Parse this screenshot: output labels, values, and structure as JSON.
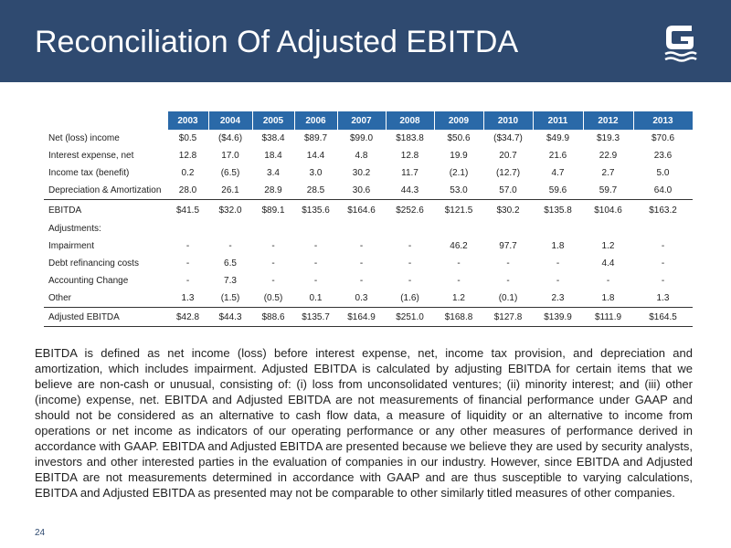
{
  "header": {
    "title": "Reconciliation Of Adjusted EBITDA",
    "background_color": "#2f4a70",
    "logo_icon": "g-logo-icon"
  },
  "table": {
    "header_color": "#2a69a8",
    "years": [
      "2003",
      "2004",
      "2005",
      "2006",
      "2007",
      "2008",
      "2009",
      "2010",
      "2011",
      "2012",
      "2013"
    ],
    "rows": [
      {
        "label": "Net (loss) income",
        "values": [
          "$0.5",
          "($4.6)",
          "$38.4",
          "$89.7",
          "$99.0",
          "$183.8",
          "$50.6",
          "($34.7)",
          "$49.9",
          "$19.3",
          "$70.6"
        ]
      },
      {
        "label": "Interest expense, net",
        "values": [
          "12.8",
          "17.0",
          "18.4",
          "14.4",
          "4.8",
          "12.8",
          "19.9",
          "20.7",
          "21.6",
          "22.9",
          "23.6"
        ]
      },
      {
        "label": "Income tax (benefit)",
        "values": [
          "0.2",
          "(6.5)",
          "3.4",
          "3.0",
          "30.2",
          "11.7",
          "(2.1)",
          "(12.7)",
          "4.7",
          "2.7",
          "5.0"
        ]
      },
      {
        "label": "Depreciation & Amortization",
        "values": [
          "28.0",
          "26.1",
          "28.9",
          "28.5",
          "30.6",
          "44.3",
          "53.0",
          "57.0",
          "59.6",
          "59.7",
          "64.0"
        ]
      },
      {
        "label": "EBITDA",
        "values": [
          "$41.5",
          "$32.0",
          "$89.1",
          "$135.6",
          "$164.6",
          "$252.6",
          "$121.5",
          "$30.2",
          "$135.8",
          "$104.6",
          "$163.2"
        ],
        "style": "subtotal"
      },
      {
        "label": "Adjustments:",
        "values": [
          "",
          "",
          "",
          "",
          "",
          "",
          "",
          "",
          "",
          "",
          ""
        ]
      },
      {
        "label": "Impairment",
        "values": [
          "-",
          "-",
          "-",
          "-",
          "-",
          "-",
          "46.2",
          "97.7",
          "1.8",
          "1.2",
          "-"
        ]
      },
      {
        "label": "Debt refinancing costs",
        "values": [
          "-",
          "6.5",
          "-",
          "-",
          "-",
          "-",
          "-",
          "-",
          "-",
          "4.4",
          "-"
        ]
      },
      {
        "label": "Accounting Change",
        "values": [
          "-",
          "7.3",
          "-",
          "-",
          "-",
          "-",
          "-",
          "-",
          "-",
          "-",
          "-"
        ]
      },
      {
        "label": "Other",
        "values": [
          "1.3",
          "(1.5)",
          "(0.5)",
          "0.1",
          "0.3",
          "(1.6)",
          "1.2",
          "(0.1)",
          "2.3",
          "1.8",
          "1.3"
        ]
      },
      {
        "label": "Adjusted EBITDA",
        "values": [
          "$42.8",
          "$44.3",
          "$88.6",
          "$135.7",
          "$164.9",
          "$251.0",
          "$168.8",
          "$127.8",
          "$139.9",
          "$111.9",
          "$164.5"
        ],
        "style": "total"
      }
    ]
  },
  "paragraph": "EBITDA is defined as net income (loss) before interest expense, net, income tax provision, and depreciation and amortization, which includes impairment.  Adjusted EBITDA is calculated by adjusting EBITDA for certain items that we believe are non-cash or unusual, consisting of: (i) loss from unconsolidated ventures; (ii) minority interest; and (iii) other (income) expense, net.  EBITDA and Adjusted EBITDA are not measurements of financial performance under GAAP and should not be considered as an alternative to cash flow data, a measure of liquidity or an alternative to income from operations or net income as indicators of our operating performance or any other measures of performance derived in accordance with GAAP.  EBITDA and Adjusted EBITDA are presented because we believe they are used by security analysts, investors and other interested parties in the evaluation of companies in our industry.  However, since EBITDA and Adjusted EBITDA are not measurements determined in accordance with GAAP and are thus susceptible to varying calculations, EBITDA and Adjusted EBITDA as presented may not be comparable to other similarly titled measures of other companies.",
  "page_number": "24"
}
